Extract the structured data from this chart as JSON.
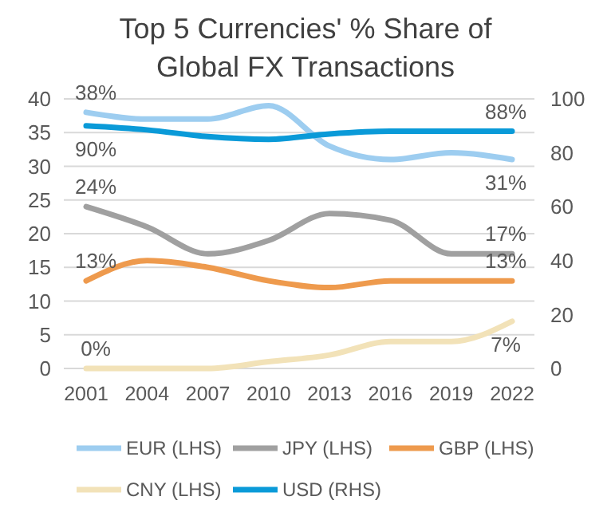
{
  "chart_data": {
    "type": "line",
    "title": "Top 5 Currencies' % Share of Global FX Transactions",
    "categories": [
      "2001",
      "2004",
      "2007",
      "2010",
      "2013",
      "2016",
      "2019",
      "2022"
    ],
    "ylim": [
      0,
      40
    ],
    "yticks": [
      0,
      5,
      10,
      15,
      20,
      25,
      30,
      35,
      40
    ],
    "y2lim": [
      0,
      100
    ],
    "y2ticks": [
      0,
      20,
      40,
      60,
      80,
      100
    ],
    "grid": "y",
    "legend": "bottom",
    "line_style": "solid",
    "marker": "none",
    "series": [
      {
        "name": "EUR (LHS)",
        "color": "#9dcdf0",
        "values": [
          38,
          37,
          37,
          39,
          33,
          31,
          32,
          31
        ],
        "value_labels": [
          "38%",
          null,
          null,
          null,
          null,
          null,
          null,
          "31%"
        ]
      },
      {
        "name": "JPY (LHS)",
        "color": "#a0a0a0",
        "values": [
          24,
          21,
          17,
          19,
          23,
          22,
          17,
          17
        ],
        "value_labels": [
          "24%",
          null,
          null,
          null,
          null,
          null,
          null,
          "17%"
        ]
      },
      {
        "name": "GBP (LHS)",
        "color": "#ee9a4d",
        "values": [
          13,
          16,
          15,
          13,
          12,
          13,
          13,
          13
        ],
        "value_labels": [
          "13%",
          null,
          null,
          null,
          null,
          null,
          null,
          "13%"
        ]
      },
      {
        "name": "CNY (LHS)",
        "color": "#f2e2b8",
        "values": [
          0,
          0,
          0,
          1,
          2,
          4,
          4,
          7
        ],
        "value_labels": [
          "0%",
          null,
          null,
          null,
          null,
          null,
          null,
          "7%"
        ]
      },
      {
        "name": "USD (RHS)",
        "color": "#0a9ad8",
        "axis": "y2",
        "values": [
          90,
          88.5,
          86,
          85,
          87,
          88,
          88,
          88
        ],
        "value_labels": [
          "90%",
          null,
          null,
          null,
          null,
          null,
          null,
          "88%"
        ]
      }
    ]
  }
}
